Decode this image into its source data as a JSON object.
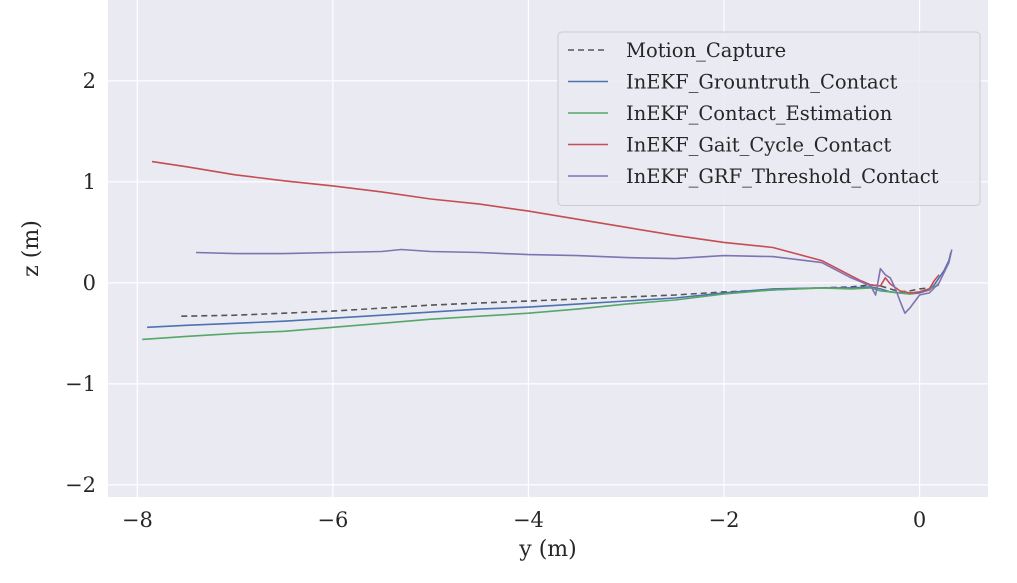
{
  "chart_data": {
    "type": "line",
    "title": "",
    "xlabel": "y (m)",
    "ylabel": "z (m)",
    "xlim": [
      -8.3,
      0.7
    ],
    "ylim": [
      -2.12,
      2.8
    ],
    "grid": true,
    "background": "#eaeaf2",
    "legend": "top-right",
    "xticks": [
      -8,
      -6,
      -4,
      -2,
      0
    ],
    "yticks": [
      -2,
      -1,
      0,
      1,
      2
    ],
    "xtick_labels": [
      "−8",
      "−6",
      "−4",
      "−2",
      "0"
    ],
    "ytick_labels": [
      "−2",
      "−1",
      "0",
      "1",
      "2"
    ],
    "series": [
      {
        "name": "Motion_Capture",
        "color": "#555555",
        "dash": "6,4",
        "x": [
          -7.55,
          -7.0,
          -6.5,
          -6.0,
          -5.5,
          -5.0,
          -4.5,
          -4.0,
          -3.5,
          -3.0,
          -2.5,
          -2.0,
          -1.5,
          -1.0,
          -0.7,
          -0.5,
          -0.4,
          -0.3,
          -0.2,
          -0.1,
          0.0,
          0.1
        ],
        "y": [
          -0.33,
          -0.32,
          -0.3,
          -0.28,
          -0.25,
          -0.22,
          -0.2,
          -0.18,
          -0.16,
          -0.14,
          -0.12,
          -0.09,
          -0.07,
          -0.05,
          -0.04,
          -0.02,
          -0.03,
          -0.06,
          -0.09,
          -0.08,
          -0.06,
          -0.05
        ]
      },
      {
        "name": "InEKF_Grountruth_Contact",
        "color": "#4c72b0",
        "x": [
          -7.9,
          -7.5,
          -7.0,
          -6.5,
          -6.0,
          -5.5,
          -5.0,
          -4.5,
          -4.0,
          -3.5,
          -3.0,
          -2.5,
          -2.0,
          -1.5,
          -1.0,
          -0.7,
          -0.5,
          -0.4,
          -0.3,
          -0.2,
          -0.1,
          0.0,
          0.1,
          0.15,
          0.2,
          0.25,
          0.3,
          0.32
        ],
        "y": [
          -0.44,
          -0.42,
          -0.4,
          -0.38,
          -0.35,
          -0.32,
          -0.29,
          -0.26,
          -0.24,
          -0.21,
          -0.18,
          -0.15,
          -0.1,
          -0.06,
          -0.05,
          -0.05,
          -0.04,
          -0.06,
          -0.09,
          -0.1,
          -0.11,
          -0.1,
          -0.07,
          -0.02,
          0.05,
          0.12,
          0.22,
          0.3
        ]
      },
      {
        "name": "InEKF_Contact_Estimation",
        "color": "#55a868",
        "x": [
          -7.95,
          -7.5,
          -7.0,
          -6.5,
          -6.0,
          -5.5,
          -5.0,
          -4.5,
          -4.0,
          -3.5,
          -3.0,
          -2.5,
          -2.0,
          -1.5,
          -1.0,
          -0.7,
          -0.5,
          -0.4,
          -0.3,
          -0.2,
          -0.1,
          0.0,
          0.1,
          0.2
        ],
        "y": [
          -0.56,
          -0.53,
          -0.5,
          -0.48,
          -0.44,
          -0.4,
          -0.36,
          -0.33,
          -0.3,
          -0.26,
          -0.21,
          -0.17,
          -0.11,
          -0.07,
          -0.05,
          -0.06,
          -0.05,
          -0.08,
          -0.09,
          -0.1,
          -0.11,
          -0.09,
          -0.06,
          -0.02
        ]
      },
      {
        "name": "InEKF_Gait_Cycle_Contact",
        "color": "#c44e52",
        "x": [
          -7.85,
          -7.5,
          -7.0,
          -6.5,
          -6.0,
          -5.5,
          -5.0,
          -4.5,
          -4.0,
          -3.5,
          -3.0,
          -2.5,
          -2.0,
          -1.5,
          -1.0,
          -0.8,
          -0.6,
          -0.5,
          -0.4,
          -0.35,
          -0.3,
          -0.2,
          -0.1,
          0.0,
          0.1,
          0.15,
          0.2
        ],
        "y": [
          1.2,
          1.15,
          1.07,
          1.01,
          0.96,
          0.9,
          0.83,
          0.78,
          0.71,
          0.63,
          0.55,
          0.47,
          0.4,
          0.35,
          0.22,
          0.12,
          0.02,
          -0.02,
          -0.03,
          0.05,
          -0.01,
          -0.08,
          -0.1,
          -0.09,
          -0.06,
          0.02,
          0.08
        ]
      },
      {
        "name": "InEKF_GRF_Threshold_Contact",
        "color": "#8172b2",
        "x": [
          -7.4,
          -7.0,
          -6.5,
          -6.0,
          -5.5,
          -5.3,
          -5.0,
          -4.5,
          -4.0,
          -3.5,
          -3.0,
          -2.5,
          -2.0,
          -1.5,
          -1.0,
          -0.7,
          -0.5,
          -0.45,
          -0.4,
          -0.35,
          -0.3,
          -0.25,
          -0.2,
          -0.15,
          -0.1,
          0.0,
          0.1,
          0.2,
          0.25,
          0.3,
          0.33
        ],
        "y": [
          0.3,
          0.29,
          0.29,
          0.3,
          0.31,
          0.33,
          0.31,
          0.3,
          0.28,
          0.27,
          0.25,
          0.24,
          0.27,
          0.26,
          0.2,
          0.05,
          -0.03,
          -0.12,
          0.14,
          0.08,
          0.05,
          -0.05,
          -0.18,
          -0.3,
          -0.25,
          -0.12,
          -0.1,
          0.0,
          0.1,
          0.2,
          0.33
        ]
      }
    ]
  }
}
